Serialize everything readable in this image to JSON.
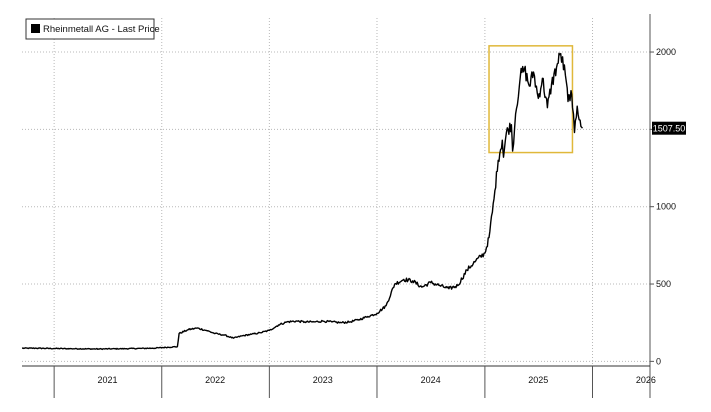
{
  "chart_data": {
    "type": "line",
    "legend": {
      "label": "Rheinmetall AG - Last Price",
      "placement": "top-left"
    },
    "last_value_label": "1507.50",
    "y_axis": {
      "side": "right",
      "ticks": [
        0,
        500,
        1000,
        1500,
        2000
      ],
      "ylim": [
        -30,
        2220
      ]
    },
    "x_axis": {
      "ticks": [
        "2021",
        "2022",
        "2023",
        "2024",
        "2025",
        "2026"
      ],
      "xlim": [
        "2020-09-14",
        "2026-07-15"
      ]
    },
    "grid": true,
    "highlight_box": {
      "color": "#e0b83a",
      "x_range": [
        "2025-01-15",
        "2025-10-25"
      ],
      "y_range": [
        1350,
        2040
      ]
    },
    "series": [
      {
        "name": "Rheinmetall AG - Last Price",
        "color": "#000000",
        "points": [
          [
            "2020-09-14",
            85
          ],
          [
            "2020-11-01",
            85
          ],
          [
            "2020-12-31",
            83
          ],
          [
            "2021-03-01",
            82
          ],
          [
            "2021-06-01",
            80
          ],
          [
            "2021-09-01",
            82
          ],
          [
            "2021-12-01",
            85
          ],
          [
            "2022-02-23",
            95
          ],
          [
            "2022-03-01",
            180
          ],
          [
            "2022-04-01",
            205
          ],
          [
            "2022-05-01",
            215
          ],
          [
            "2022-06-01",
            200
          ],
          [
            "2022-07-01",
            180
          ],
          [
            "2022-08-01",
            170
          ],
          [
            "2022-09-01",
            150
          ],
          [
            "2022-10-01",
            165
          ],
          [
            "2022-11-01",
            175
          ],
          [
            "2022-12-01",
            185
          ],
          [
            "2023-01-01",
            200
          ],
          [
            "2023-02-01",
            235
          ],
          [
            "2023-03-01",
            255
          ],
          [
            "2023-04-01",
            260
          ],
          [
            "2023-05-01",
            255
          ],
          [
            "2023-06-01",
            255
          ],
          [
            "2023-07-01",
            260
          ],
          [
            "2023-08-01",
            255
          ],
          [
            "2023-09-01",
            250
          ],
          [
            "2023-10-01",
            255
          ],
          [
            "2023-11-01",
            270
          ],
          [
            "2023-12-01",
            290
          ],
          [
            "2024-01-01",
            310
          ],
          [
            "2024-02-01",
            360
          ],
          [
            "2024-03-01",
            500
          ],
          [
            "2024-04-01",
            530
          ],
          [
            "2024-05-01",
            520
          ],
          [
            "2024-06-01",
            480
          ],
          [
            "2024-07-01",
            510
          ],
          [
            "2024-08-01",
            490
          ],
          [
            "2024-09-01",
            470
          ],
          [
            "2024-10-01",
            490
          ],
          [
            "2024-11-01",
            590
          ],
          [
            "2024-12-01",
            650
          ],
          [
            "2025-01-01",
            700
          ],
          [
            "2025-01-15",
            800
          ],
          [
            "2025-02-01",
            1050
          ],
          [
            "2025-02-15",
            1300
          ],
          [
            "2025-03-01",
            1430
          ],
          [
            "2025-03-05",
            1320
          ],
          [
            "2025-03-15",
            1480
          ],
          [
            "2025-04-01",
            1530
          ],
          [
            "2025-04-05",
            1360
          ],
          [
            "2025-04-15",
            1600
          ],
          [
            "2025-05-01",
            1840
          ],
          [
            "2025-05-15",
            1890
          ],
          [
            "2025-06-01",
            1780
          ],
          [
            "2025-06-15",
            1870
          ],
          [
            "2025-07-01",
            1700
          ],
          [
            "2025-07-15",
            1830
          ],
          [
            "2025-08-01",
            1640
          ],
          [
            "2025-08-15",
            1790
          ],
          [
            "2025-09-01",
            1900
          ],
          [
            "2025-09-15",
            1990
          ],
          [
            "2025-10-01",
            1850
          ],
          [
            "2025-10-10",
            1680
          ],
          [
            "2025-10-20",
            1750
          ],
          [
            "2025-10-25",
            1640
          ],
          [
            "2025-11-01",
            1480
          ],
          [
            "2025-11-10",
            1650
          ],
          [
            "2025-11-20",
            1560
          ],
          [
            "2025-11-28",
            1507.5
          ]
        ]
      }
    ]
  }
}
